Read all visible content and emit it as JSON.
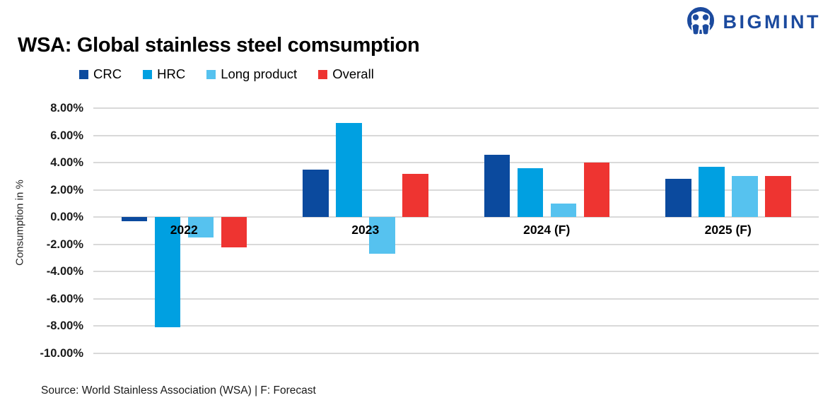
{
  "logo": {
    "text": "BIGMINT",
    "color": "#1b4a9e"
  },
  "title": "WSA: Global stainless steel comsumption",
  "source": "Source: World Stainless Association (WSA) | F: Forecast",
  "chart_data": {
    "type": "bar",
    "title": "WSA: Global stainless steel comsumption",
    "categories": [
      "2022",
      "2023",
      "2024 (F)",
      "2025 (F)"
    ],
    "series": [
      {
        "name": "CRC",
        "color": "#0b4a9e",
        "values": [
          -0.3,
          3.5,
          4.6,
          2.8
        ]
      },
      {
        "name": "HRC",
        "color": "#00a0e1",
        "values": [
          -8.1,
          6.9,
          3.6,
          3.7
        ]
      },
      {
        "name": "Long product",
        "color": "#56c2ef",
        "values": [
          -1.5,
          -2.7,
          1.0,
          3.0
        ]
      },
      {
        "name": "Overall",
        "color": "#ee3431",
        "values": [
          -2.2,
          3.2,
          4.0,
          3.0
        ]
      }
    ],
    "xlabel": "",
    "ylabel": "Consumption in %",
    "ylim": [
      -10,
      8
    ],
    "ytick_step": 2,
    "ytick_format": "0.00%",
    "grid": true,
    "gridline_color": "#d9d9d9",
    "legend_position": "top-left"
  }
}
